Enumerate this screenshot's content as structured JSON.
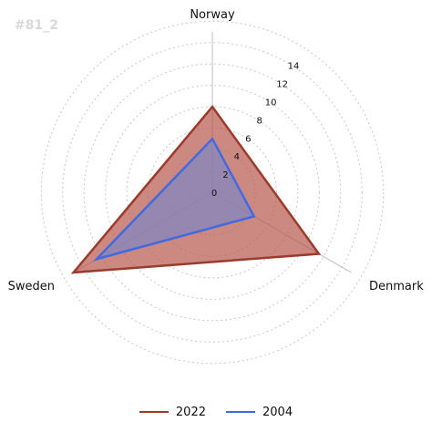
{
  "watermark": "#81_2",
  "chart_data": {
    "type": "radar",
    "categories": [
      "Norway",
      "Denmark",
      "Sweden"
    ],
    "radial_ticks": [
      "0",
      "2",
      "4",
      "6",
      "8",
      "10",
      "12",
      "14"
    ],
    "rmax": 15,
    "grid": true,
    "series": [
      {
        "name": "2022",
        "values": [
          8,
          11.5,
          15
        ],
        "color": "#9c3b2c",
        "fill": "#b5574b"
      },
      {
        "name": "2004",
        "values": [
          5,
          4.5,
          12.5
        ],
        "color": "#4169e1",
        "fill": "#7f86c4"
      }
    ],
    "legend_position": "bottom-center"
  }
}
